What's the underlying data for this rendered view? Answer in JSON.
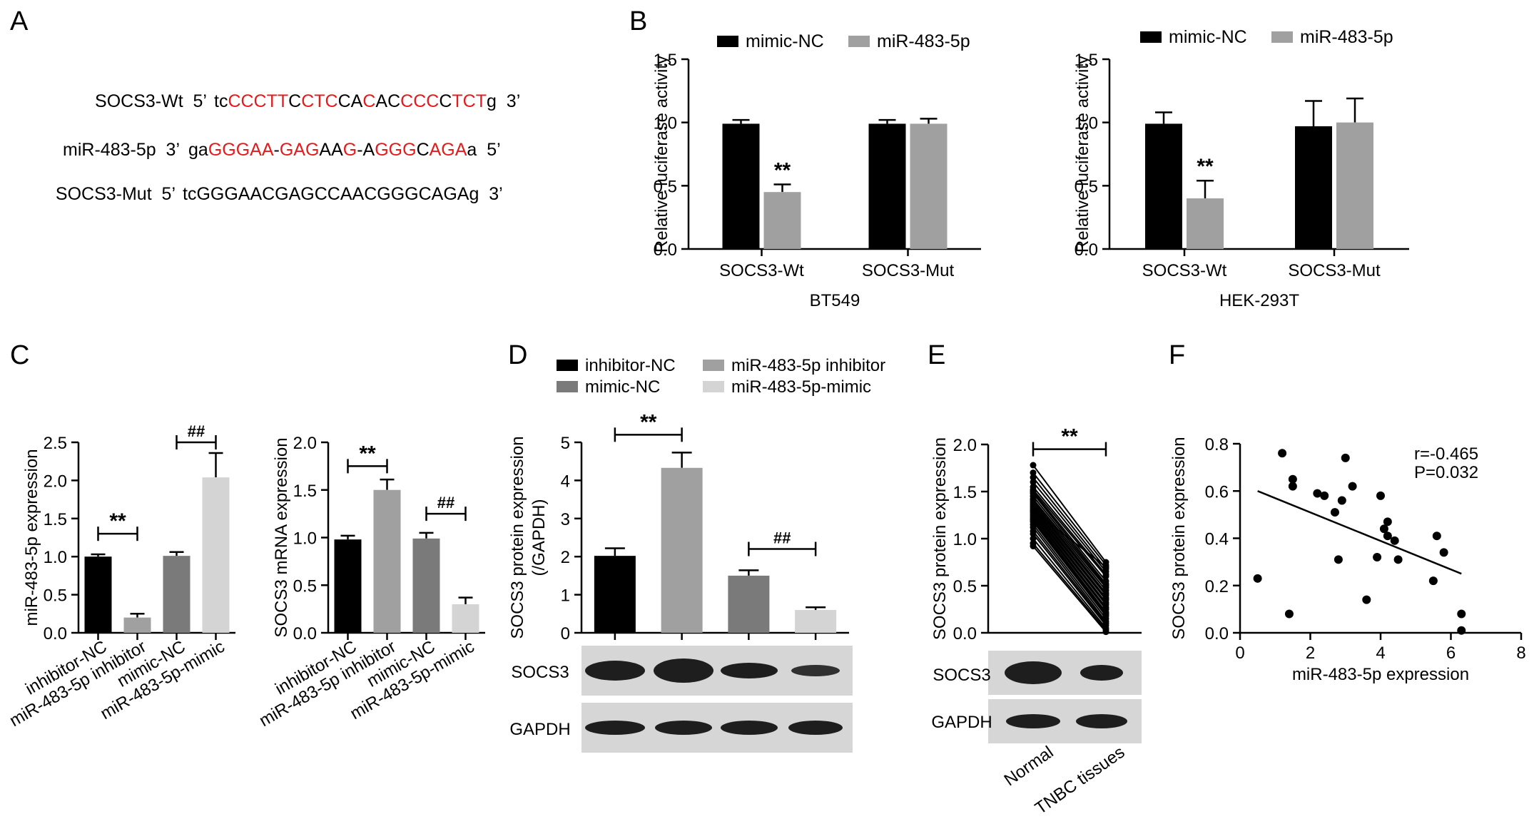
{
  "panels": {
    "A": "A",
    "B": "B",
    "C": "C",
    "D": "D",
    "E": "E",
    "F": "F"
  },
  "sequences": [
    {
      "name": "SOCS3-Wt",
      "prime_start": "5’",
      "segments": [
        {
          "t": "tc",
          "red": false
        },
        {
          "t": "CCCTT",
          "red": true
        },
        {
          "t": "C",
          "red": false
        },
        {
          "t": "CTC",
          "red": true
        },
        {
          "t": "CA",
          "red": false
        },
        {
          "t": "C",
          "red": true
        },
        {
          "t": "AC",
          "red": false
        },
        {
          "t": "CCC",
          "red": true
        },
        {
          "t": "C",
          "red": false
        },
        {
          "t": "TCT",
          "red": true
        },
        {
          "t": "g",
          "red": false
        }
      ],
      "prime_end": "3’"
    },
    {
      "name": "miR-483-5p",
      "prime_start": "3’",
      "segments": [
        {
          "t": "ga",
          "red": false
        },
        {
          "t": "GGGAA",
          "red": true
        },
        {
          "t": "-",
          "red": false
        },
        {
          "t": "GAG",
          "red": true
        },
        {
          "t": "AA",
          "red": false
        },
        {
          "t": "G",
          "red": true
        },
        {
          "t": "-A",
          "red": false
        },
        {
          "t": "GGG",
          "red": true
        },
        {
          "t": "C",
          "red": false
        },
        {
          "t": "AGA",
          "red": true
        },
        {
          "t": "a",
          "red": false
        }
      ],
      "prime_end": "5’"
    },
    {
      "name": "SOCS3-Mut",
      "prime_start": "5’",
      "segments": [
        {
          "t": "tcGGGAACGAGCCAACGGGCAGAg",
          "red": false
        }
      ],
      "prime_end": "3’"
    }
  ],
  "colors": {
    "black": "#000000",
    "grey_mid": "#7a7a7a",
    "grey_light": "#a0a0a0",
    "grey_pale": "#d4d4d4",
    "red": "#e41a1c"
  },
  "chart_data": [
    {
      "id": "B1",
      "type": "bar",
      "categories": [
        "SOCS3-Wt",
        "SOCS3-Mut"
      ],
      "xlabel": "BT549",
      "ylabel": "Relative luciferase activity",
      "ylim": [
        0,
        1.5
      ],
      "yticks": [
        0.0,
        0.5,
        1.0,
        1.5
      ],
      "ytick_labels": [
        "0.0",
        "0.5",
        "1.0",
        "1.5"
      ],
      "legend": "top",
      "series": [
        {
          "name": "mimic-NC",
          "color": "#000000",
          "values": [
            0.99,
            0.99
          ],
          "errors": [
            0.03,
            0.03
          ]
        },
        {
          "name": "miR-483-5p",
          "color": "#a0a0a0",
          "values": [
            0.45,
            0.99
          ],
          "errors": [
            0.06,
            0.04
          ]
        }
      ],
      "annotations": [
        {
          "text": "**",
          "category": 0,
          "series": 1
        }
      ]
    },
    {
      "id": "B2",
      "type": "bar",
      "categories": [
        "SOCS3-Wt",
        "SOCS3-Mut"
      ],
      "xlabel": "HEK-293T",
      "ylabel": "Relative luciferase activity",
      "ylim": [
        0,
        1.5
      ],
      "yticks": [
        0.0,
        0.5,
        1.0,
        1.5
      ],
      "ytick_labels": [
        "0.0",
        "0.5",
        "1.0",
        "1.5"
      ],
      "legend": "top",
      "series": [
        {
          "name": "mimic-NC",
          "color": "#000000",
          "values": [
            0.99,
            0.97
          ],
          "errors": [
            0.09,
            0.2
          ]
        },
        {
          "name": "miR-483-5p",
          "color": "#a0a0a0",
          "values": [
            0.4,
            1.0
          ],
          "errors": [
            0.14,
            0.19
          ]
        }
      ],
      "annotations": [
        {
          "text": "**",
          "category": 0,
          "series": 1
        }
      ]
    },
    {
      "id": "C1",
      "type": "bar",
      "categories": [
        "inhibitor-NC",
        "miR-483-5p inhibitor",
        "mimic-NC",
        "miR-483-5p-mimic"
      ],
      "ylabel": "miR-483-5p expression",
      "ylim": [
        0,
        2.5
      ],
      "yticks": [
        0.0,
        0.5,
        1.0,
        1.5,
        2.0,
        2.5
      ],
      "ytick_labels": [
        "0.0",
        "0.5",
        "1.0",
        "1.5",
        "2.0",
        "2.5"
      ],
      "values": [
        1.0,
        0.2,
        1.01,
        2.04
      ],
      "errors": [
        0.03,
        0.05,
        0.05,
        0.32
      ],
      "colors": [
        "#000000",
        "#a0a0a0",
        "#7a7a7a",
        "#d4d4d4"
      ],
      "brackets": [
        {
          "from": 0,
          "to": 1,
          "y": 1.3,
          "text": "**"
        },
        {
          "from": 2,
          "to": 3,
          "y": 2.5,
          "text": "##"
        }
      ]
    },
    {
      "id": "C2",
      "type": "bar",
      "categories": [
        "inhibitor-NC",
        "miR-483-5p inhibitor",
        "mimic-NC",
        "miR-483-5p-mimic"
      ],
      "ylabel": "SOCS3 mRNA expression",
      "ylim": [
        0,
        2.0
      ],
      "yticks": [
        0.0,
        0.5,
        1.0,
        1.5,
        2.0
      ],
      "ytick_labels": [
        "0.0",
        "0.5",
        "1.0",
        "1.5",
        "2.0"
      ],
      "values": [
        0.98,
        1.5,
        0.99,
        0.3
      ],
      "errors": [
        0.04,
        0.11,
        0.06,
        0.07
      ],
      "colors": [
        "#000000",
        "#a0a0a0",
        "#7a7a7a",
        "#d4d4d4"
      ],
      "brackets": [
        {
          "from": 0,
          "to": 1,
          "y": 1.75,
          "text": "**"
        },
        {
          "from": 2,
          "to": 3,
          "y": 1.25,
          "text": "##"
        }
      ]
    },
    {
      "id": "D",
      "type": "bar",
      "categories": [
        "inhibitor-NC",
        "miR-483-5p inhibitor",
        "mimic-NC",
        "miR-483-5p-mimic"
      ],
      "ylabel": "SOCS3 protein expression (/GAPDH)",
      "ylabel_lines": [
        "SOCS3 protein expression",
        "(/GAPDH)"
      ],
      "ylim": [
        0,
        5
      ],
      "yticks": [
        0,
        1,
        2,
        3,
        4,
        5
      ],
      "ytick_labels": [
        "0",
        "1",
        "2",
        "3",
        "4",
        "5"
      ],
      "legend": "top",
      "legend_entries": [
        "inhibitor-NC",
        "mimic-NC",
        "miR-483-5p inhibitor",
        "miR-483-5p-mimic"
      ],
      "values": [
        2.02,
        4.33,
        1.5,
        0.6
      ],
      "errors": [
        0.2,
        0.4,
        0.14,
        0.07
      ],
      "colors": [
        "#000000",
        "#a0a0a0",
        "#7a7a7a",
        "#d4d4d4"
      ],
      "brackets": [
        {
          "from": 0,
          "to": 1,
          "y": 5.2,
          "text": "**"
        },
        {
          "from": 2,
          "to": 3,
          "y": 2.2,
          "text": "##"
        }
      ],
      "blot_labels": [
        "SOCS3",
        "GAPDH"
      ]
    },
    {
      "id": "E",
      "type": "line",
      "categories": [
        "Normal",
        "TNBC tissues"
      ],
      "ylabel": "SOCS3 protein expression",
      "ylim": [
        0,
        2.0
      ],
      "yticks": [
        0.0,
        0.5,
        1.0,
        1.5,
        2.0
      ],
      "ytick_labels": [
        "0.0",
        "0.5",
        "1.0",
        "1.5",
        "2.0"
      ],
      "pairs": [
        [
          1.78,
          0.75
        ],
        [
          1.7,
          0.72
        ],
        [
          1.65,
          0.68
        ],
        [
          1.6,
          0.65
        ],
        [
          1.55,
          0.62
        ],
        [
          1.52,
          0.6
        ],
        [
          1.5,
          0.55
        ],
        [
          1.48,
          0.52
        ],
        [
          1.45,
          0.5
        ],
        [
          1.42,
          0.48
        ],
        [
          1.4,
          0.45
        ],
        [
          1.38,
          0.42
        ],
        [
          1.36,
          0.4
        ],
        [
          1.34,
          0.37
        ],
        [
          1.32,
          0.35
        ],
        [
          1.3,
          0.32
        ],
        [
          1.28,
          0.3
        ],
        [
          1.26,
          0.27
        ],
        [
          1.24,
          0.25
        ],
        [
          1.22,
          0.22
        ],
        [
          1.2,
          0.2
        ],
        [
          1.18,
          0.18
        ],
        [
          1.15,
          0.15
        ],
        [
          1.12,
          0.12
        ],
        [
          1.08,
          0.1
        ],
        [
          1.05,
          0.08
        ],
        [
          1.0,
          0.05
        ],
        [
          0.95,
          0.03
        ],
        [
          0.92,
          0.01
        ],
        [
          1.3,
          0.7
        ]
      ],
      "brackets": [
        {
          "from": 0,
          "to": 1,
          "y": 1.95,
          "text": "**"
        }
      ],
      "blot_labels": [
        "SOCS3",
        "GAPDH"
      ]
    },
    {
      "id": "F",
      "type": "scatter",
      "xlabel": "miR-483-5p expression",
      "ylabel": "SOCS3 protein expression",
      "xlim": [
        0,
        8
      ],
      "ylim": [
        0,
        0.8
      ],
      "xticks": [
        0,
        2,
        4,
        6,
        8
      ],
      "xtick_labels": [
        "0",
        "2",
        "4",
        "6",
        "8"
      ],
      "yticks": [
        0.0,
        0.2,
        0.4,
        0.6,
        0.8
      ],
      "ytick_labels": [
        "0.0",
        "0.2",
        "0.4",
        "0.6",
        "0.8"
      ],
      "points": [
        [
          0.5,
          0.23
        ],
        [
          1.2,
          0.76
        ],
        [
          1.5,
          0.65
        ],
        [
          1.5,
          0.62
        ],
        [
          1.4,
          0.08
        ],
        [
          2.2,
          0.59
        ],
        [
          2.4,
          0.58
        ],
        [
          2.7,
          0.51
        ],
        [
          2.8,
          0.31
        ],
        [
          2.9,
          0.56
        ],
        [
          3.0,
          0.74
        ],
        [
          3.2,
          0.62
        ],
        [
          3.6,
          0.14
        ],
        [
          3.9,
          0.32
        ],
        [
          4.0,
          0.58
        ],
        [
          4.1,
          0.44
        ],
        [
          4.2,
          0.47
        ],
        [
          4.2,
          0.41
        ],
        [
          4.4,
          0.39
        ],
        [
          4.5,
          0.31
        ],
        [
          5.5,
          0.22
        ],
        [
          5.6,
          0.41
        ],
        [
          5.8,
          0.34
        ],
        [
          6.3,
          0.08
        ],
        [
          6.3,
          0.01
        ]
      ],
      "fit_line": {
        "x": [
          0.5,
          6.3
        ],
        "y": [
          0.6,
          0.25
        ]
      },
      "annotations": [
        "r=-0.465",
        "P=0.032"
      ]
    }
  ]
}
